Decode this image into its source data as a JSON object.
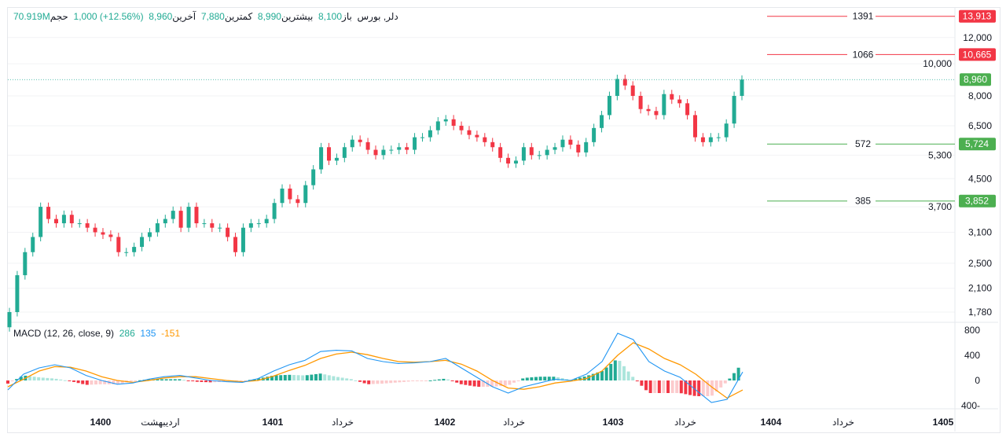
{
  "legend": {
    "symbol": "دلر, بورس",
    "open_label": "باز",
    "open": "8,100",
    "high_label": "بیشترین",
    "high": "8,990",
    "low_label": "کمترین",
    "low": "7,880",
    "close_label": "آخرین",
    "close": "8,960",
    "change": "1,000 (+12.56%)",
    "volume_label": "حجم",
    "volume": "70.919M"
  },
  "macd_legend": {
    "title": "MACD (12, 26, close, 9)",
    "histogram": "286",
    "macd": "135",
    "signal": "-151"
  },
  "colors": {
    "up": "#22ab94",
    "down": "#f23645",
    "macd": "#2196f3",
    "signal": "#ff9800",
    "hist_up_strong": "#22ab94",
    "hist_up_weak": "#ace5dc",
    "hist_down_strong": "#f23645",
    "hist_down_weak": "#fccbcd",
    "level_red": "#f23645",
    "level_green": "#4caf50"
  },
  "chart_data": [
    {
      "type": "candlestick",
      "y_scale": "log",
      "y_ticks": [
        "12,000",
        "10,000",
        "8,000",
        "6,500",
        "5,300",
        "4,500",
        "3,700",
        "3,100",
        "2,500",
        "2,100",
        "1,780"
      ],
      "y_tick_values": [
        12000,
        10000,
        8000,
        6500,
        5300,
        4500,
        3700,
        3100,
        2500,
        2100,
        1780
      ],
      "x_ticks": [
        "1400",
        "اردیبهشت",
        "1401",
        "خرداد",
        "1402",
        "خرداد",
        "1403",
        "خرداد",
        "1404",
        "خرداد",
        "1405"
      ],
      "closes": [
        1780,
        2300,
        2700,
        3000,
        3700,
        3400,
        3300,
        3500,
        3300,
        3300,
        3200,
        3100,
        3050,
        3000,
        2700,
        2700,
        2800,
        3000,
        3100,
        3300,
        3400,
        3600,
        3200,
        3700,
        3300,
        3300,
        3200,
        3200,
        3000,
        2700,
        3200,
        3300,
        3300,
        3400,
        3800,
        4200,
        3900,
        3800,
        4300,
        4800,
        5600,
        5100,
        5200,
        5600,
        5900,
        5800,
        5500,
        5300,
        5500,
        5500,
        5600,
        5500,
        6000,
        6000,
        6300,
        6700,
        6800,
        6500,
        6300,
        6100,
        6000,
        5800,
        5600,
        5200,
        5000,
        5100,
        5600,
        5300,
        5300,
        5500,
        5600,
        5900,
        5700,
        5400,
        5800,
        6400,
        7000,
        8000,
        9000,
        8600,
        8000,
        7300,
        7200,
        7000,
        8100,
        7800,
        7600,
        7000,
        6000,
        5800,
        6000,
        6000,
        6600,
        8000,
        8960
      ],
      "last_price": {
        "value": 8960,
        "label": "8,960"
      },
      "levels": [
        {
          "value": 13913,
          "label": "13,913",
          "line_text": "1391",
          "color": "red"
        },
        {
          "value": 10665,
          "label": "10,665",
          "line_text": "1066",
          "color": "red"
        },
        {
          "value": 5724,
          "label": "5,724",
          "line_text": "572",
          "color": "green"
        },
        {
          "value": 3852,
          "label": "3,852",
          "line_text": "385",
          "color": "green"
        }
      ]
    },
    {
      "type": "line+bar",
      "title": "MACD (12, 26, close, 9)",
      "y_ticks": [
        "800",
        "400",
        "0",
        "-400"
      ],
      "y_tick_values": [
        800,
        400,
        0,
        -400
      ],
      "macd": [
        -150,
        100,
        200,
        250,
        200,
        80,
        0,
        -60,
        -40,
        20,
        60,
        80,
        40,
        0,
        -20,
        -30,
        30,
        150,
        250,
        320,
        460,
        480,
        470,
        350,
        300,
        270,
        280,
        300,
        350,
        200,
        50,
        -100,
        -200,
        -100,
        -40,
        20,
        0,
        100,
        300,
        750,
        650,
        300,
        150,
        50,
        -150,
        -350,
        -300,
        135
      ],
      "signal": [
        -100,
        20,
        150,
        220,
        210,
        150,
        60,
        0,
        -30,
        0,
        40,
        60,
        60,
        30,
        0,
        -20,
        0,
        70,
        160,
        240,
        350,
        420,
        450,
        410,
        350,
        300,
        290,
        300,
        320,
        260,
        150,
        0,
        -120,
        -140,
        -100,
        -40,
        -10,
        30,
        150,
        400,
        600,
        500,
        350,
        250,
        100,
        -100,
        -280,
        -151
      ]
    }
  ]
}
